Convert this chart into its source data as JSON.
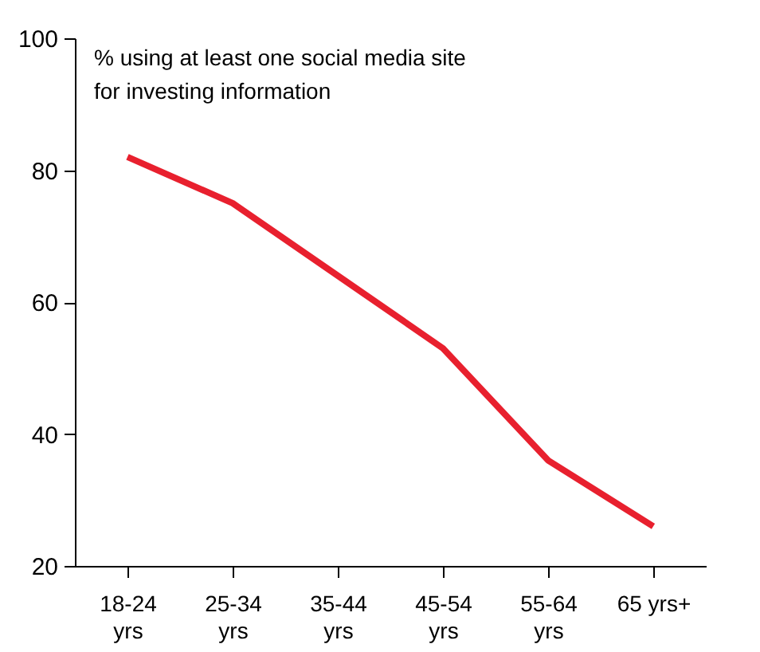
{
  "chart_data": {
    "type": "line",
    "title": "% using at least one social media site for investing information",
    "categories": [
      "18-24 yrs",
      "25-34 yrs",
      "35-44 yrs",
      "45-54 yrs",
      "55-64 yrs",
      "65 yrs+"
    ],
    "series": [
      {
        "color": "#e8202e",
        "values": [
          82,
          75,
          64,
          53,
          36,
          26
        ]
      }
    ],
    "ylim": [
      20,
      100
    ],
    "yticks": [
      20,
      40,
      60,
      80,
      100
    ],
    "grid": false,
    "legend": false,
    "marker": "none",
    "line_style": "solid"
  }
}
